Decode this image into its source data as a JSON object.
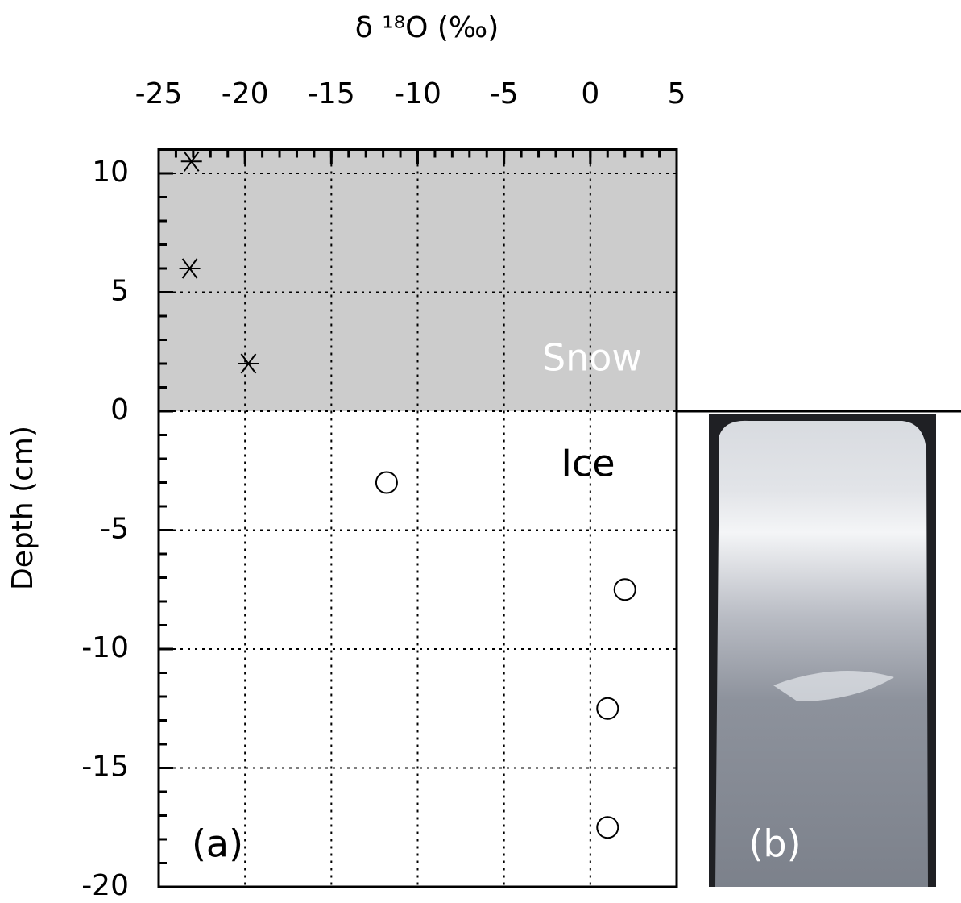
{
  "chart_data": {
    "type": "scatter",
    "xlabel": "δ ¹⁸O (‰)",
    "ylabel": "Depth (cm)",
    "xlim": [
      -25,
      5
    ],
    "xticks": [
      -25,
      -20,
      -15,
      -10,
      -5,
      0,
      5
    ],
    "ylim": [
      -20,
      11
    ],
    "yticks": [
      -20,
      -15,
      -10,
      -5,
      0,
      5,
      10
    ],
    "minor_step": 1,
    "grid": true,
    "shade": {
      "from": 0,
      "to": 11,
      "color": "#cccccc"
    },
    "series": [
      {
        "marker": "asterisk",
        "color": "#000000",
        "x": [
          -23.1,
          -23.2,
          -19.8
        ],
        "values": [
          10.5,
          6,
          2
        ]
      },
      {
        "marker": "circle",
        "color": "#000000",
        "x": [
          -11.8,
          2,
          1,
          1
        ],
        "values": [
          -3,
          -7.5,
          -12.5,
          -17.5
        ]
      }
    ],
    "annotations": [
      "Snow",
      "Ice",
      "(a)",
      "(b)"
    ]
  }
}
